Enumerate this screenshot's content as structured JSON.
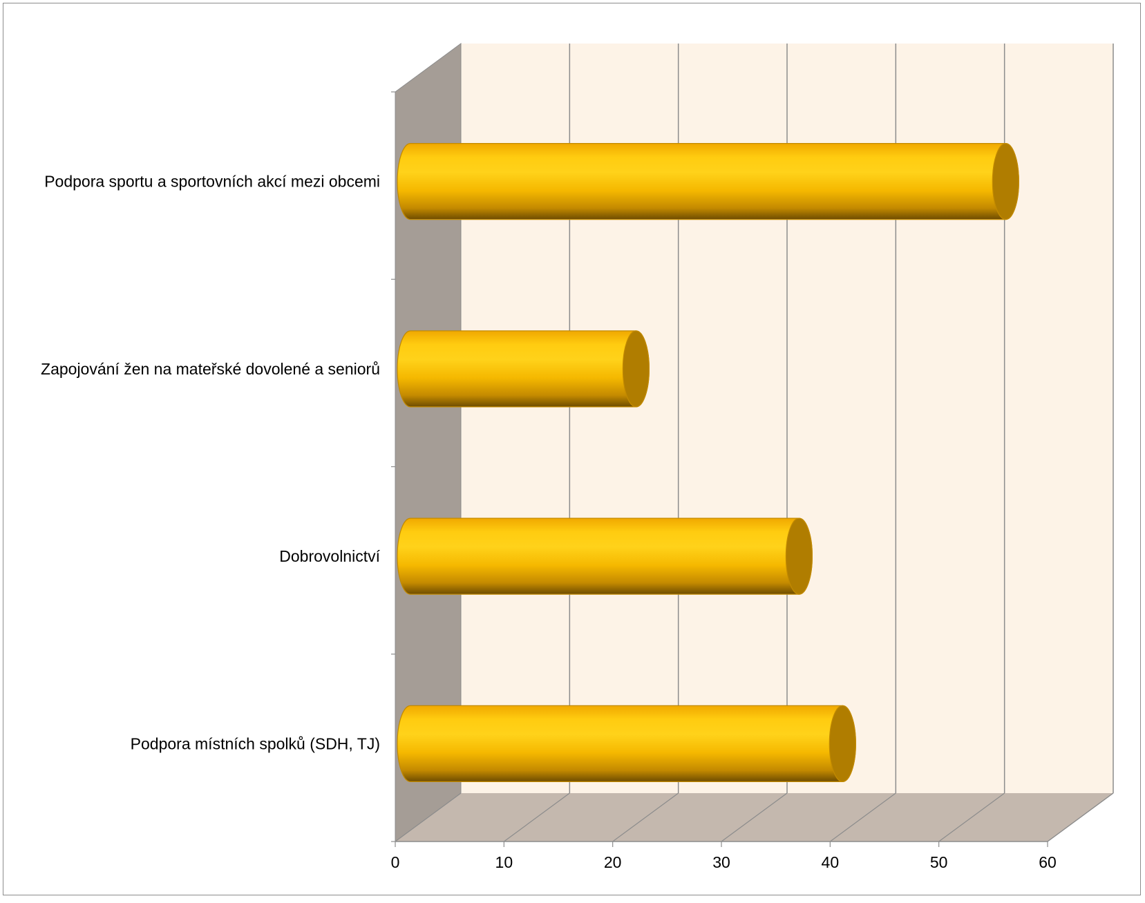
{
  "chart_data": {
    "type": "bar",
    "orientation": "horizontal",
    "style": "3d-cylinder",
    "title": "",
    "xlabel": "",
    "ylabel": "",
    "categories": [
      "Podpora sportu a sportovních akcí mezi obcemi",
      "Zapojování žen na mateřské dovolené a seniorů",
      "Dobrovolnictví",
      "Podpora místních spolků (SDH, TJ)"
    ],
    "values": [
      55,
      21,
      36,
      40
    ],
    "xlim": [
      0,
      60
    ],
    "x_ticks": [
      "0",
      "10",
      "20",
      "30",
      "40",
      "50",
      "60"
    ],
    "grid": true,
    "legend": "none",
    "colors": {
      "bar_light": "#ffd21a",
      "bar_mid": "#f5b800",
      "bar_dark": "#8a6200",
      "bar_cap": "#b07d00",
      "back_wall": "#fdf3e7",
      "side_wall": "#a59d96",
      "floor": "#c4b8ae",
      "grid_line": "#8c8c8c"
    }
  }
}
